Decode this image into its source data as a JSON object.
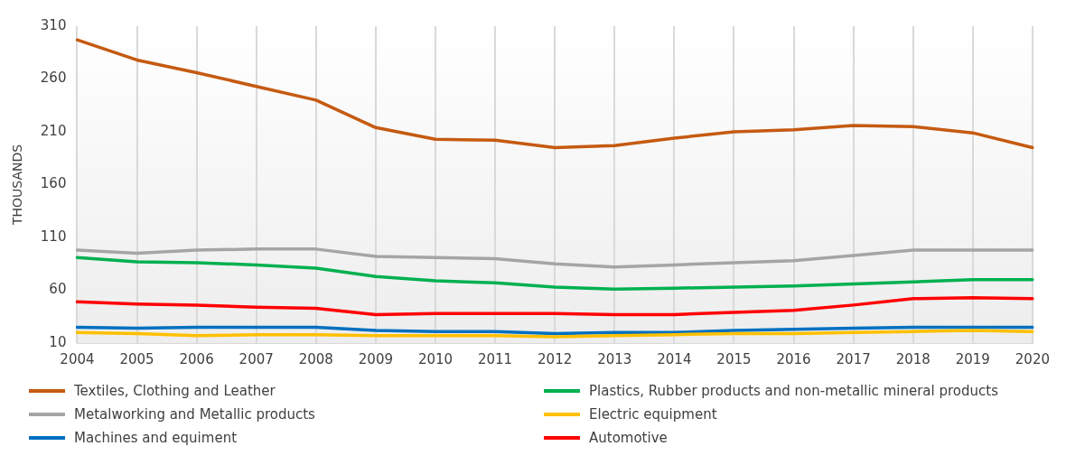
{
  "chart_data": {
    "type": "line",
    "ylabel": "THOUSANDS",
    "categories": [
      "2004",
      "2005",
      "2006",
      "2007",
      "2008",
      "2009",
      "2010",
      "2011",
      "2012",
      "2013",
      "2014",
      "2015",
      "2016",
      "2017",
      "2018",
      "2019",
      "2020"
    ],
    "series": [
      {
        "name": "Textiles, Clothing and Leather",
        "color": "#c55a11",
        "values": [
          297,
          278,
          266,
          253,
          240,
          214,
          203,
          202,
          195,
          197,
          204,
          210,
          212,
          216,
          215,
          209,
          195
        ]
      },
      {
        "name": "Plastics, Rubber products and non-metallic mineral products",
        "color": "#00b050",
        "values": [
          91,
          87,
          86,
          84,
          81,
          73,
          69,
          67,
          63,
          61,
          62,
          63,
          64,
          66,
          68,
          70,
          70
        ]
      },
      {
        "name": "Metalworking and Metallic products",
        "color": "#a5a5a5",
        "values": [
          98,
          95,
          98,
          99,
          99,
          92,
          91,
          90,
          85,
          82,
          84,
          86,
          88,
          93,
          98,
          98,
          98
        ]
      },
      {
        "name": "Electric equipment",
        "color": "#ffc000",
        "values": [
          20,
          19,
          17,
          18,
          18,
          17,
          17,
          17,
          16,
          17,
          18,
          19,
          19,
          20,
          21,
          22,
          21
        ]
      },
      {
        "name": "Machines and equiment",
        "color": "#0070c0",
        "values": [
          25,
          24,
          25,
          25,
          25,
          22,
          21,
          21,
          19,
          20,
          20,
          22,
          23,
          24,
          25,
          25,
          25
        ]
      },
      {
        "name": "Automotive",
        "color": "#ff0000",
        "values": [
          49,
          47,
          46,
          44,
          43,
          37,
          38,
          38,
          38,
          37,
          37,
          39,
          41,
          46,
          52,
          53,
          52
        ]
      }
    ],
    "ylim": [
      10,
      310
    ],
    "yticks": [
      10,
      60,
      110,
      160,
      210,
      260,
      310
    ],
    "grid": "x",
    "legend": "bottom",
    "marker": "none",
    "line_style": "solid"
  }
}
